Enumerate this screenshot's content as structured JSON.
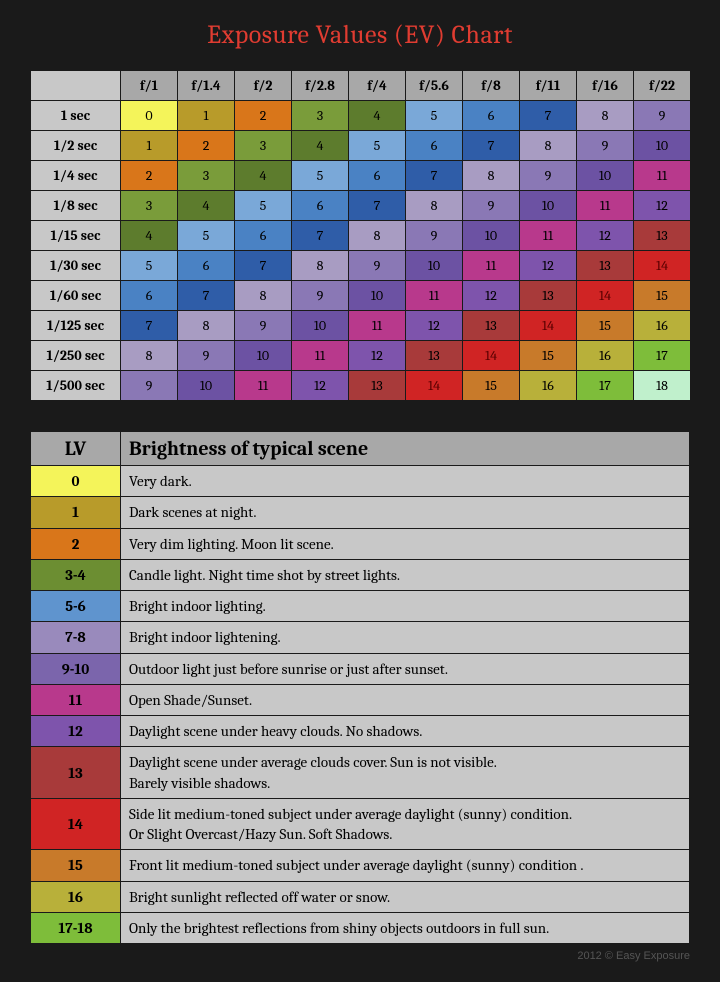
{
  "title": "Exposure Values (EV) Chart",
  "credit": "2012 © Easy Exposure",
  "ev_table": {
    "col_headers": [
      "f/1",
      "f/1.4",
      "f/2",
      "f/2.8",
      "f/4",
      "f/5.6",
      "f/8",
      "f/11",
      "f/16",
      "f/22"
    ],
    "row_headers": [
      "1 sec",
      "1/2 sec",
      "1/4 sec",
      "1/8 sec",
      "1/15 sec",
      "1/30 sec",
      "1/60 sec",
      "1/125 sec",
      "1/250 sec",
      "1/500 sec"
    ],
    "rows": [
      [
        {
          "v": "0",
          "c": "#f4f45a"
        },
        {
          "v": "1",
          "c": "#b89b2a"
        },
        {
          "v": "2",
          "c": "#d9761a"
        },
        {
          "v": "3",
          "c": "#7a9c3a"
        },
        {
          "v": "4",
          "c": "#5d7c2d"
        },
        {
          "v": "5",
          "c": "#7aa8d8"
        },
        {
          "v": "6",
          "c": "#4a82c4"
        },
        {
          "v": "7",
          "c": "#2f5da8"
        },
        {
          "v": "8",
          "c": "#a89cc2"
        },
        {
          "v": "9",
          "c": "#8a78b5"
        }
      ],
      [
        {
          "v": "1",
          "c": "#b89b2a"
        },
        {
          "v": "2",
          "c": "#d9761a"
        },
        {
          "v": "3",
          "c": "#7a9c3a"
        },
        {
          "v": "4",
          "c": "#5d7c2d"
        },
        {
          "v": "5",
          "c": "#7aa8d8"
        },
        {
          "v": "6",
          "c": "#4a82c4"
        },
        {
          "v": "7",
          "c": "#2f5da8"
        },
        {
          "v": "8",
          "c": "#a89cc2"
        },
        {
          "v": "9",
          "c": "#8a78b5"
        },
        {
          "v": "10",
          "c": "#6c52a3"
        }
      ],
      [
        {
          "v": "2",
          "c": "#d9761a"
        },
        {
          "v": "3",
          "c": "#7a9c3a"
        },
        {
          "v": "4",
          "c": "#5d7c2d"
        },
        {
          "v": "5",
          "c": "#7aa8d8"
        },
        {
          "v": "6",
          "c": "#4a82c4"
        },
        {
          "v": "7",
          "c": "#2f5da8"
        },
        {
          "v": "8",
          "c": "#a89cc2"
        },
        {
          "v": "9",
          "c": "#8a78b5"
        },
        {
          "v": "10",
          "c": "#6c52a3"
        },
        {
          "v": "11",
          "c": "#b8398c"
        }
      ],
      [
        {
          "v": "3",
          "c": "#7a9c3a"
        },
        {
          "v": "4",
          "c": "#5d7c2d"
        },
        {
          "v": "5",
          "c": "#7aa8d8"
        },
        {
          "v": "6",
          "c": "#4a82c4"
        },
        {
          "v": "7",
          "c": "#2f5da8"
        },
        {
          "v": "8",
          "c": "#a89cc2"
        },
        {
          "v": "9",
          "c": "#8a78b5"
        },
        {
          "v": "10",
          "c": "#6c52a3"
        },
        {
          "v": "11",
          "c": "#b8398c"
        },
        {
          "v": "12",
          "c": "#7e54ac"
        }
      ],
      [
        {
          "v": "4",
          "c": "#5d7c2d"
        },
        {
          "v": "5",
          "c": "#7aa8d8"
        },
        {
          "v": "6",
          "c": "#4a82c4"
        },
        {
          "v": "7",
          "c": "#2f5da8"
        },
        {
          "v": "8",
          "c": "#a89cc2"
        },
        {
          "v": "9",
          "c": "#8a78b5"
        },
        {
          "v": "10",
          "c": "#6c52a3"
        },
        {
          "v": "11",
          "c": "#b8398c"
        },
        {
          "v": "12",
          "c": "#7e54ac"
        },
        {
          "v": "13",
          "c": "#a83a3a"
        }
      ],
      [
        {
          "v": "5",
          "c": "#7aa8d8"
        },
        {
          "v": "6",
          "c": "#4a82c4"
        },
        {
          "v": "7",
          "c": "#2f5da8"
        },
        {
          "v": "8",
          "c": "#a89cc2"
        },
        {
          "v": "9",
          "c": "#8a78b5"
        },
        {
          "v": "10",
          "c": "#6c52a3"
        },
        {
          "v": "11",
          "c": "#b8398c"
        },
        {
          "v": "12",
          "c": "#7e54ac"
        },
        {
          "v": "13",
          "c": "#a83a3a"
        },
        {
          "v": "14",
          "c": "#d02424",
          "t": "#5a0000"
        }
      ],
      [
        {
          "v": "6",
          "c": "#4a82c4"
        },
        {
          "v": "7",
          "c": "#2f5da8"
        },
        {
          "v": "8",
          "c": "#a89cc2"
        },
        {
          "v": "9",
          "c": "#8a78b5"
        },
        {
          "v": "10",
          "c": "#6c52a3"
        },
        {
          "v": "11",
          "c": "#b8398c"
        },
        {
          "v": "12",
          "c": "#7e54ac"
        },
        {
          "v": "13",
          "c": "#a83a3a"
        },
        {
          "v": "14",
          "c": "#d02424",
          "t": "#5a0000"
        },
        {
          "v": "15",
          "c": "#c87a2a"
        }
      ],
      [
        {
          "v": "7",
          "c": "#2f5da8"
        },
        {
          "v": "8",
          "c": "#a89cc2"
        },
        {
          "v": "9",
          "c": "#8a78b5"
        },
        {
          "v": "10",
          "c": "#6c52a3"
        },
        {
          "v": "11",
          "c": "#b8398c"
        },
        {
          "v": "12",
          "c": "#7e54ac"
        },
        {
          "v": "13",
          "c": "#a83a3a"
        },
        {
          "v": "14",
          "c": "#d02424",
          "t": "#5a0000"
        },
        {
          "v": "15",
          "c": "#c87a2a"
        },
        {
          "v": "16",
          "c": "#b8b03a"
        }
      ],
      [
        {
          "v": "8",
          "c": "#a89cc2"
        },
        {
          "v": "9",
          "c": "#8a78b5"
        },
        {
          "v": "10",
          "c": "#6c52a3"
        },
        {
          "v": "11",
          "c": "#b8398c"
        },
        {
          "v": "12",
          "c": "#7e54ac"
        },
        {
          "v": "13",
          "c": "#a83a3a"
        },
        {
          "v": "14",
          "c": "#d02424",
          "t": "#5a0000"
        },
        {
          "v": "15",
          "c": "#c87a2a"
        },
        {
          "v": "16",
          "c": "#b8b03a"
        },
        {
          "v": "17",
          "c": "#7ebd3a"
        }
      ],
      [
        {
          "v": "9",
          "c": "#8a78b5"
        },
        {
          "v": "10",
          "c": "#6c52a3"
        },
        {
          "v": "11",
          "c": "#b8398c"
        },
        {
          "v": "12",
          "c": "#7e54ac"
        },
        {
          "v": "13",
          "c": "#a83a3a"
        },
        {
          "v": "14",
          "c": "#d02424",
          "t": "#5a0000"
        },
        {
          "v": "15",
          "c": "#c87a2a"
        },
        {
          "v": "16",
          "c": "#b8b03a"
        },
        {
          "v": "17",
          "c": "#7ebd3a"
        },
        {
          "v": "18",
          "c": "#c0f0cc"
        }
      ]
    ]
  },
  "lv_table": {
    "headers": {
      "lv": "LV",
      "desc": "Brightness of typical scene"
    },
    "rows": [
      {
        "lv": "0",
        "c": "#f4f45a",
        "d": "Very dark."
      },
      {
        "lv": "1",
        "c": "#b89b2a",
        "d": "Dark scenes at night."
      },
      {
        "lv": "2",
        "c": "#d9761a",
        "d": "Very dim lighting. Moon lit scene."
      },
      {
        "lv": "3-4",
        "c": "#6c8e32",
        "d": "Candle light. Night time shot by street lights."
      },
      {
        "lv": "5-6",
        "c": "#5f94ce",
        "d": "Bright indoor lighting."
      },
      {
        "lv": "7-8",
        "c": "#998abc",
        "d": "Bright indoor lightening."
      },
      {
        "lv": "9-10",
        "c": "#7b65ac",
        "d": "Outdoor light just before sunrise or just after sunset."
      },
      {
        "lv": "11",
        "c": "#b8398c",
        "d": "Open Shade/Sunset."
      },
      {
        "lv": "12",
        "c": "#7e54ac",
        "d": "Daylight scene under heavy clouds. No shadows."
      },
      {
        "lv": "13",
        "c": "#a83a3a",
        "d": "Daylight scene under average clouds cover. Sun is not visible.\nBarely visible shadows."
      },
      {
        "lv": "14",
        "c": "#d02424",
        "d": "Side lit medium-toned subject under average daylight (sunny) condition.\nOr Slight Overcast/Hazy Sun. Soft Shadows."
      },
      {
        "lv": "15",
        "c": "#c87a2a",
        "d": "Front lit medium-toned subject under average daylight (sunny) condition ."
      },
      {
        "lv": "16",
        "c": "#b8b03a",
        "d": "Bright sunlight reflected off water or snow."
      },
      {
        "lv": "17-18",
        "c": "#7ebd3a",
        "d": "Only the brightest reflections from shiny objects outdoors in full sun."
      }
    ]
  }
}
